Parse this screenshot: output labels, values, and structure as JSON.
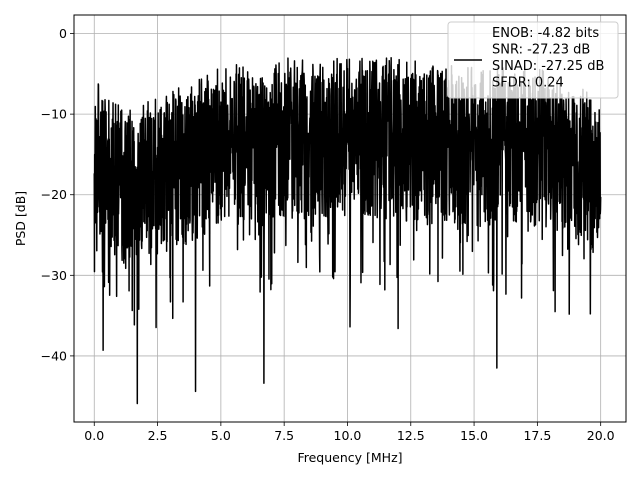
{
  "chart_data": {
    "type": "line",
    "title": "",
    "xlabel": "Frequency [MHz]",
    "ylabel": "PSD [dB]",
    "xlim": [
      -0.8,
      21.0
    ],
    "ylim": [
      -48.2,
      2.3
    ],
    "xticks": [
      0.0,
      2.5,
      5.0,
      7.5,
      10.0,
      12.5,
      15.0,
      17.5,
      20.0
    ],
    "xtick_labels": [
      "0.0",
      "2.5",
      "5.0",
      "7.5",
      "10.0",
      "12.5",
      "15.0",
      "17.5",
      "20.0"
    ],
    "yticks": [
      0,
      -10,
      -20,
      -30,
      -40
    ],
    "ytick_labels": [
      "0",
      "−10",
      "−20",
      "−30",
      "−40"
    ],
    "grid": true,
    "legend": {
      "location": "top-right",
      "lines": [
        "ENOB: -4.82 bits",
        "SNR: -27.23 dB",
        "SINAD: -27.25 dB",
        "SFDR: 0.24"
      ]
    },
    "series": [
      {
        "color": "#000000",
        "x_range": [
          0.0,
          20.0
        ],
        "description": "dense noise PSD; upper envelope approx -5 dB, typical band -22 to -8 dB",
        "envelope_top": [
          [
            0.0,
            -5
          ],
          [
            1.0,
            -9
          ],
          [
            2.5,
            -8
          ],
          [
            5.0,
            -4
          ],
          [
            7.5,
            -3
          ],
          [
            10.0,
            -3
          ],
          [
            12.5,
            -3
          ],
          [
            15.0,
            -4
          ],
          [
            17.5,
            -4
          ],
          [
            20.0,
            -8
          ]
        ],
        "notable_minima": [
          {
            "x": 0.35,
            "y": -39.3
          },
          {
            "x": 1.7,
            "y": -45.9
          },
          {
            "x": 4.0,
            "y": -44.4
          },
          {
            "x": 6.7,
            "y": -43.4
          },
          {
            "x": 10.1,
            "y": -36.4
          },
          {
            "x": 12.0,
            "y": -36.6
          },
          {
            "x": 15.9,
            "y": -41.5
          },
          {
            "x": 18.2,
            "y": -34.5
          }
        ]
      }
    ]
  }
}
